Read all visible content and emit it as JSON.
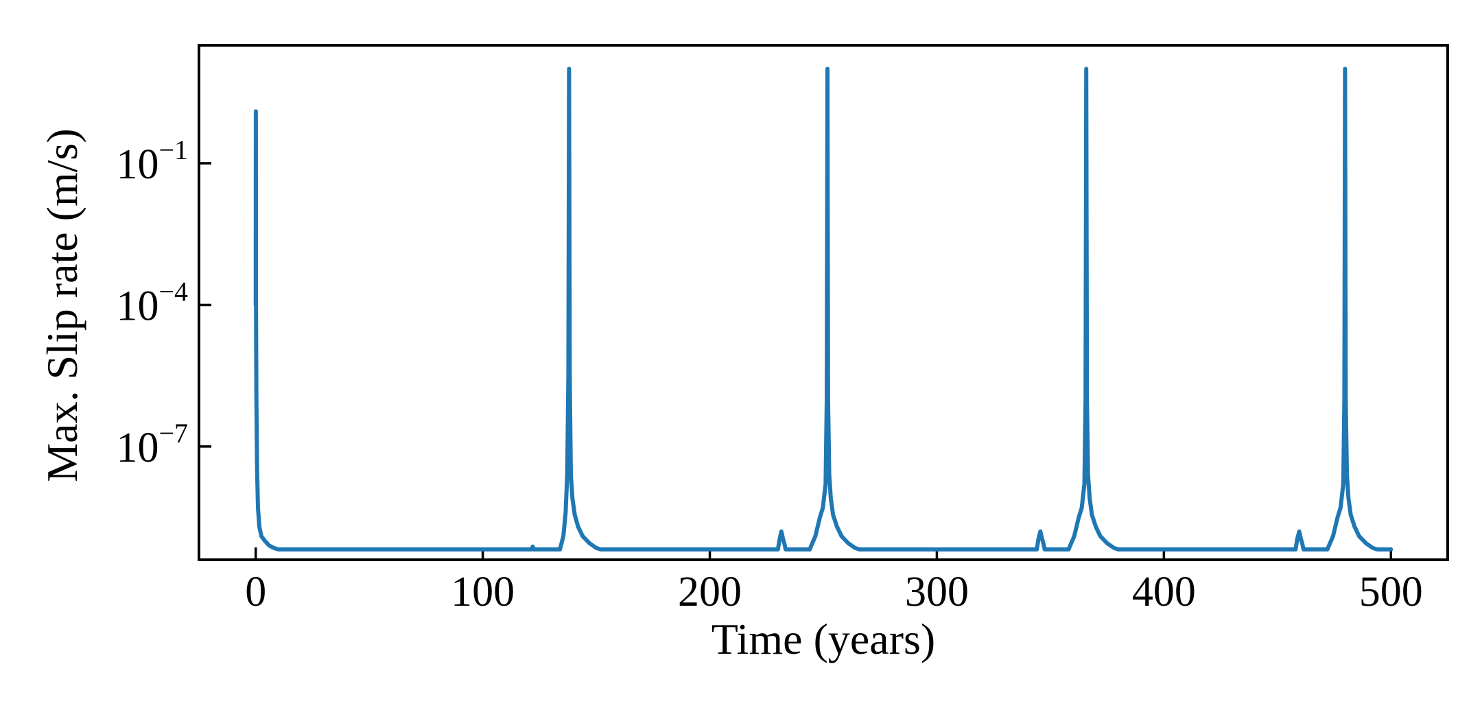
{
  "chart_data": {
    "type": "line",
    "title": "",
    "xlabel": "Time (years)",
    "ylabel": "Max. Slip rate (m/s)",
    "xlim": [
      -25,
      525
    ],
    "ylim_log10": [
      -9.4,
      1.5
    ],
    "yscale": "log",
    "grid": false,
    "legend": "none",
    "line_color": "#1f77b4",
    "xticks": [
      {
        "value": 0,
        "label": "0"
      },
      {
        "value": 100,
        "label": "100"
      },
      {
        "value": 200,
        "label": "200"
      },
      {
        "value": 300,
        "label": "300"
      },
      {
        "value": 400,
        "label": "400"
      },
      {
        "value": 500,
        "label": "500"
      }
    ],
    "yticks": [
      {
        "log10": -1,
        "base": "10",
        "exp": "−1"
      },
      {
        "log10": -4,
        "base": "10",
        "exp": "−4"
      },
      {
        "log10": -7,
        "base": "10",
        "exp": "−7"
      }
    ],
    "series": [
      {
        "color": "#1f77b4",
        "x": [
          0,
          0.05,
          0.1,
          0.3,
          0.6,
          1.0,
          1.6,
          2.5,
          4,
          6,
          8,
          10,
          121.5,
          122,
          122.5,
          123,
          134,
          135.5,
          136.5,
          137.2,
          137.7,
          138.0,
          138.3,
          138.8,
          139.5,
          140.5,
          142,
          144,
          147,
          150,
          152,
          230,
          230.8,
          231.5,
          232.2,
          232.8,
          233.4,
          244,
          246.5,
          248.5,
          249.8,
          251.0,
          251.5,
          251.8,
          252.1,
          252.6,
          253.3,
          254.3,
          256,
          258,
          261,
          264,
          266,
          344,
          344.8,
          345.6,
          346.3,
          346.9,
          347.5,
          358,
          360.5,
          362.5,
          363.8,
          365.0,
          365.5,
          365.8,
          366.1,
          366.6,
          367.3,
          368.3,
          370,
          372,
          375,
          378,
          380,
          458,
          458.8,
          459.6,
          460.3,
          460.9,
          461.5,
          472,
          474.5,
          476.5,
          477.8,
          479.0,
          479.5,
          479.8,
          480.1,
          480.6,
          481.3,
          482.3,
          484,
          486,
          489,
          492,
          494,
          500
        ],
        "log10_y": [
          -4,
          0.1,
          -4,
          -6,
          -7.5,
          -8.3,
          -8.7,
          -8.9,
          -9.0,
          -9.1,
          -9.15,
          -9.18,
          -9.18,
          -9.12,
          -9.18,
          -9.18,
          -9.18,
          -8.9,
          -8.4,
          -7.6,
          -5.5,
          1.0,
          -5.5,
          -7.6,
          -8.1,
          -8.45,
          -8.7,
          -8.9,
          -9.05,
          -9.15,
          -9.18,
          -9.18,
          -8.95,
          -8.8,
          -8.95,
          -9.05,
          -9.18,
          -9.18,
          -8.9,
          -8.5,
          -8.3,
          -7.8,
          -6.0,
          1.0,
          -6.0,
          -7.6,
          -8.1,
          -8.45,
          -8.7,
          -8.9,
          -9.05,
          -9.15,
          -9.18,
          -9.18,
          -8.95,
          -8.8,
          -8.95,
          -9.05,
          -9.18,
          -9.18,
          -8.9,
          -8.5,
          -8.3,
          -7.8,
          -6.0,
          1.0,
          -6.0,
          -7.6,
          -8.1,
          -8.45,
          -8.7,
          -8.9,
          -9.05,
          -9.15,
          -9.18,
          -9.18,
          -8.95,
          -8.8,
          -8.95,
          -9.05,
          -9.18,
          -9.18,
          -8.9,
          -8.5,
          -8.3,
          -7.8,
          -6.0,
          1.0,
          -6.0,
          -7.6,
          -8.1,
          -8.45,
          -8.7,
          -8.9,
          -9.05,
          -9.15,
          -9.18,
          -9.18
        ]
      }
    ]
  }
}
